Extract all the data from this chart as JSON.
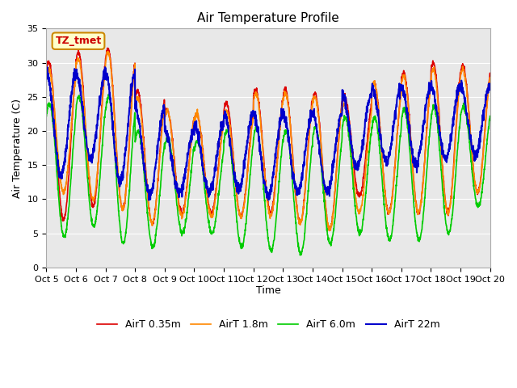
{
  "title": "Air Temperature Profile",
  "xlabel": "Time",
  "ylabel": "Air Temperature (C)",
  "ylim": [
    0,
    35
  ],
  "background_color": "#ffffff",
  "plot_bg_color": "#e8e8e8",
  "annotation_text": "TZ_tmet",
  "annotation_color": "#cc0000",
  "annotation_bg": "#ffffcc",
  "annotation_border": "#cc8800",
  "colors": {
    "AirT 0.35m": "#dd0000",
    "AirT 1.8m": "#ff8800",
    "AirT 6.0m": "#00cc00",
    "AirT 22m": "#0000cc"
  },
  "legend_labels": [
    "AirT 0.35m",
    "AirT 1.8m",
    "AirT 6.0m",
    "AirT 22m"
  ],
  "tick_labels": [
    "Oct 5",
    "Oct 6",
    "Oct 7",
    "Oct 8",
    "Oct 9",
    "Oct 10",
    "Oct 11",
    "Oct 12",
    "Oct 13",
    "Oct 14",
    "Oct 15",
    "Oct 16",
    "Oct 17",
    "Oct 18",
    "Oct 19",
    "Oct 20"
  ],
  "num_days": 15,
  "yticks": [
    0,
    5,
    10,
    15,
    20,
    25,
    30,
    35
  ],
  "day_peaks_035": [
    30.2,
    31.5,
    32.0,
    26.0,
    23.0,
    22.5,
    24.0,
    26.0,
    26.0,
    25.5,
    25.0,
    27.0,
    28.5,
    30.0,
    29.5
  ],
  "day_mins_035": [
    7.0,
    9.0,
    8.5,
    6.5,
    8.0,
    8.0,
    7.5,
    8.0,
    6.5,
    5.5,
    10.5,
    8.0,
    8.0,
    8.0,
    11.0
  ],
  "day_peaks_18": [
    29.0,
    30.5,
    31.5,
    25.0,
    23.0,
    22.5,
    23.0,
    25.5,
    25.5,
    25.0,
    24.0,
    27.0,
    28.0,
    29.0,
    29.0
  ],
  "day_mins_18": [
    11.0,
    10.0,
    8.5,
    6.5,
    7.5,
    7.5,
    7.5,
    7.5,
    6.5,
    5.5,
    8.0,
    8.0,
    8.0,
    8.0,
    11.0
  ],
  "day_peaks_60": [
    24.0,
    25.0,
    25.0,
    20.0,
    19.0,
    18.5,
    20.0,
    20.5,
    20.0,
    20.5,
    22.0,
    22.0,
    23.0,
    23.5,
    23.5
  ],
  "day_mins_60": [
    4.5,
    6.0,
    3.5,
    3.0,
    5.0,
    5.0,
    3.0,
    2.5,
    2.0,
    3.5,
    5.0,
    4.0,
    4.0,
    5.0,
    9.0
  ],
  "day_peaks_22m": [
    28.5,
    28.5,
    28.5,
    23.5,
    20.0,
    21.0,
    22.5,
    22.5,
    22.5,
    22.5,
    25.5,
    26.5,
    26.5,
    26.5,
    26.5
  ],
  "day_mins_22m": [
    13.5,
    16.0,
    12.5,
    10.5,
    11.0,
    11.0,
    11.5,
    10.5,
    11.0,
    11.0,
    14.5,
    15.5,
    15.0,
    16.0,
    16.5
  ]
}
